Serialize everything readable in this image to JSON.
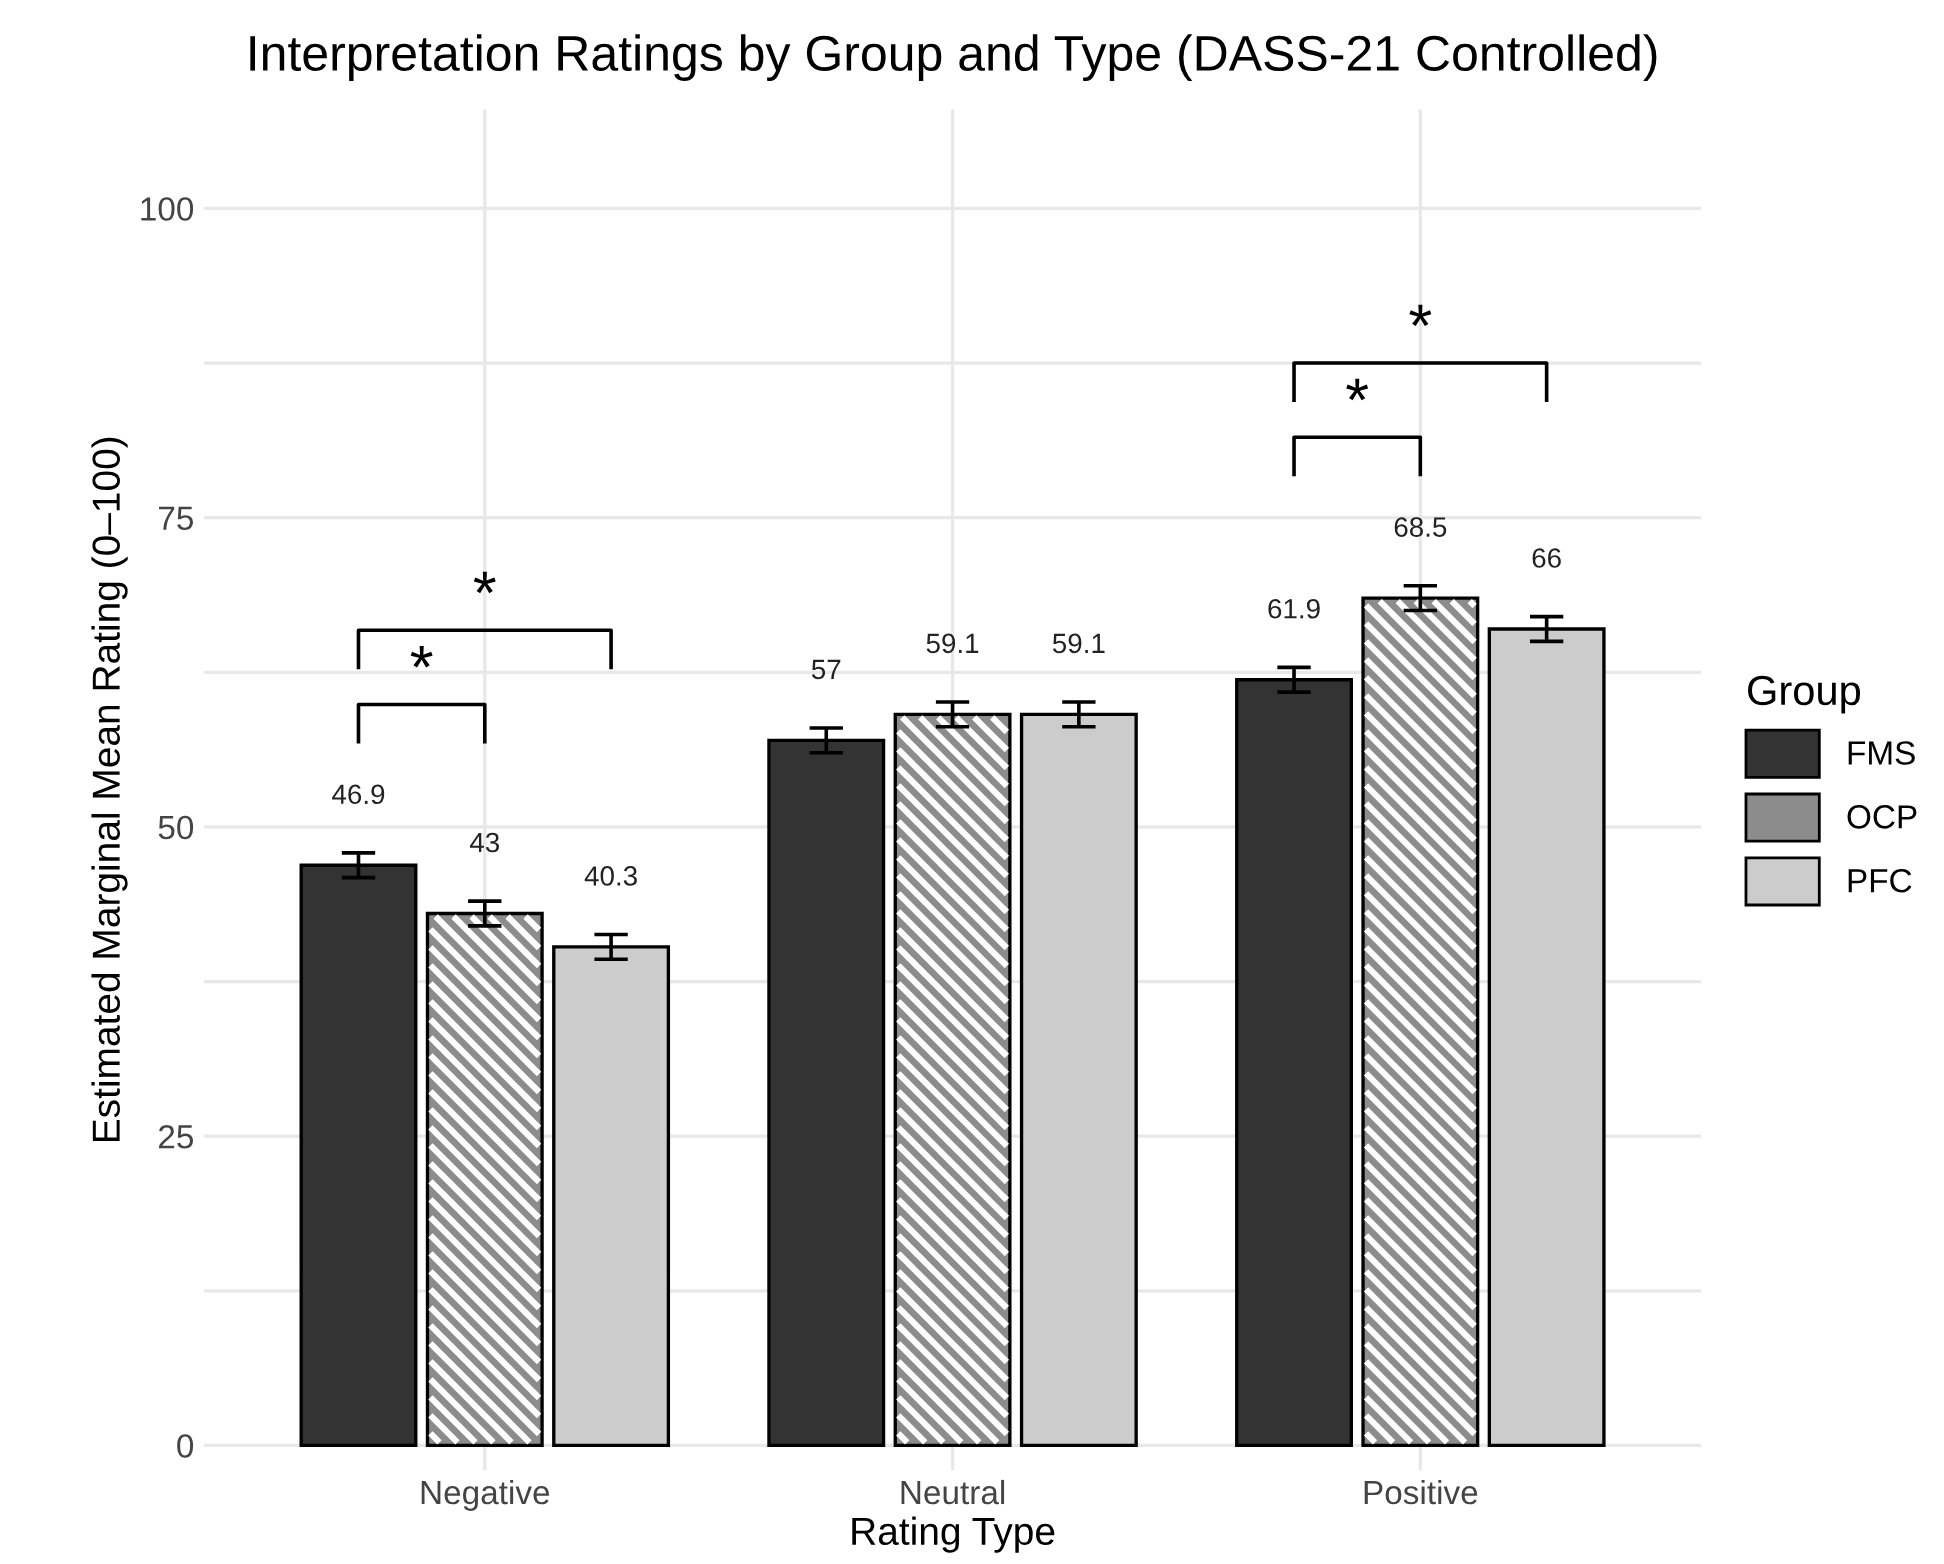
{
  "chart_data": {
    "type": "bar",
    "title": "Interpretation Ratings by Group and Type (DASS-21 Controlled)",
    "xlabel": "Rating Type",
    "ylabel": "Estimated Marginal Mean Rating (0–100)",
    "legend_title": "Group",
    "categories": [
      "Negative",
      "Neutral",
      "Positive"
    ],
    "series": [
      {
        "name": "FMS",
        "color": "#333333",
        "values": [
          46.9,
          57,
          61.9
        ],
        "errors": [
          1.0,
          1.0,
          1.0
        ]
      },
      {
        "name": "OCP",
        "color": "#8c8c8c",
        "values": [
          43,
          59.1,
          68.5
        ],
        "errors": [
          1.0,
          1.0,
          1.0
        ]
      },
      {
        "name": "PFC",
        "color": "#cccccc",
        "values": [
          40.3,
          59.1,
          66
        ],
        "errors": [
          1.0,
          1.0,
          1.0
        ]
      }
    ],
    "ylim": [
      -2,
      108
    ],
    "yticks": [
      0,
      {
        "value": 12.5,
        "label": null
      },
      25,
      {
        "value": 37.5,
        "label": null
      },
      50,
      {
        "value": 62.5,
        "label": null
      },
      75,
      {
        "value": 87.5,
        "label": null
      },
      100
    ],
    "grid": true,
    "legend": "right",
    "data_labels": true,
    "annotations": [
      "*",
      "*",
      "*",
      "*"
    ]
  }
}
